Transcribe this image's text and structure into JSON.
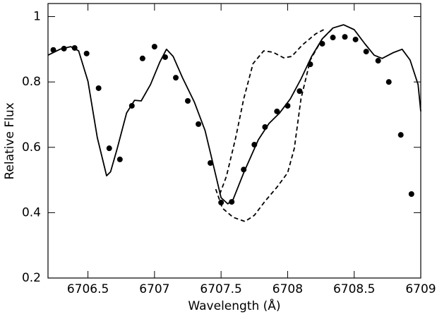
{
  "chart_data": {
    "type": "line",
    "xlabel": "Wavelength (Å)",
    "ylabel": "Relative Flux",
    "xlim": [
      6706.2,
      6709
    ],
    "ylim": [
      0.2,
      1.04
    ],
    "xticks": [
      6706.5,
      6707,
      6707.5,
      6708,
      6708.5,
      6709
    ],
    "yticks": [
      0.2,
      0.4,
      0.6,
      0.8,
      1
    ],
    "color": "#000000",
    "series": [
      {
        "mode": "markers",
        "x": [
          6706.24,
          6706.32,
          6706.4,
          6706.49,
          6706.58,
          6706.66,
          6706.74,
          6706.83,
          6706.91,
          6707.0,
          6707.08,
          6707.16,
          6707.25,
          6707.33,
          6707.42,
          6707.5,
          6707.58,
          6707.67,
          6707.75,
          6707.83,
          6707.92,
          6708.0,
          6708.09,
          6708.17,
          6708.26,
          6708.34,
          6708.43,
          6708.51,
          6708.59,
          6708.68,
          6708.76,
          6708.85,
          6708.93
        ],
        "values": [
          0.898,
          0.902,
          0.904,
          0.887,
          0.781,
          0.597,
          0.563,
          0.727,
          0.872,
          0.908,
          0.876,
          0.813,
          0.742,
          0.671,
          0.552,
          0.431,
          0.433,
          0.532,
          0.608,
          0.662,
          0.71,
          0.727,
          0.772,
          0.854,
          0.917,
          0.936,
          0.938,
          0.93,
          0.893,
          0.865,
          0.8,
          0.638,
          0.457
        ]
      },
      {
        "mode": "line",
        "dash": false,
        "x": [
          6706.2,
          6706.29,
          6706.37,
          6706.43,
          6706.5,
          6706.57,
          6706.64,
          6706.67,
          6706.72,
          6706.79,
          6706.85,
          6706.9,
          6706.97,
          6707.04,
          6707.09,
          6707.14,
          6707.21,
          6707.3,
          6707.38,
          6707.45,
          6707.5,
          6707.55,
          6707.59,
          6707.67,
          6707.78,
          6707.86,
          6707.94,
          6708.02,
          6708.1,
          6708.18,
          6708.26,
          6708.34,
          6708.42,
          6708.5,
          6708.58,
          6708.65,
          6708.71,
          6708.79,
          6708.86,
          6708.92,
          6708.98,
          6709.0
        ],
        "values": [
          0.882,
          0.9,
          0.908,
          0.895,
          0.802,
          0.63,
          0.513,
          0.525,
          0.597,
          0.705,
          0.744,
          0.742,
          0.792,
          0.861,
          0.9,
          0.878,
          0.813,
          0.738,
          0.651,
          0.532,
          0.446,
          0.427,
          0.44,
          0.522,
          0.623,
          0.673,
          0.705,
          0.748,
          0.809,
          0.878,
          0.932,
          0.965,
          0.975,
          0.96,
          0.917,
          0.882,
          0.872,
          0.889,
          0.9,
          0.867,
          0.792,
          0.71
        ]
      },
      {
        "mode": "line",
        "dash": true,
        "x": [
          6707.49,
          6707.54,
          6707.61,
          6707.67,
          6707.74,
          6707.82,
          6707.89,
          6707.97,
          6708.03,
          6708.11,
          6708.21,
          6708.29
        ],
        "values": [
          0.457,
          0.511,
          0.63,
          0.748,
          0.856,
          0.895,
          0.891,
          0.874,
          0.878,
          0.913,
          0.947,
          0.964
        ]
      },
      {
        "mode": "line",
        "dash": true,
        "x": [
          6707.46,
          6707.51,
          6707.59,
          6707.68,
          6707.75,
          6707.83,
          6707.92,
          6708.0,
          6708.05,
          6708.1,
          6708.17,
          6708.26,
          6708.34
        ],
        "values": [
          0.472,
          0.414,
          0.386,
          0.373,
          0.392,
          0.435,
          0.478,
          0.522,
          0.597,
          0.748,
          0.867,
          0.932,
          0.964
        ]
      }
    ]
  }
}
